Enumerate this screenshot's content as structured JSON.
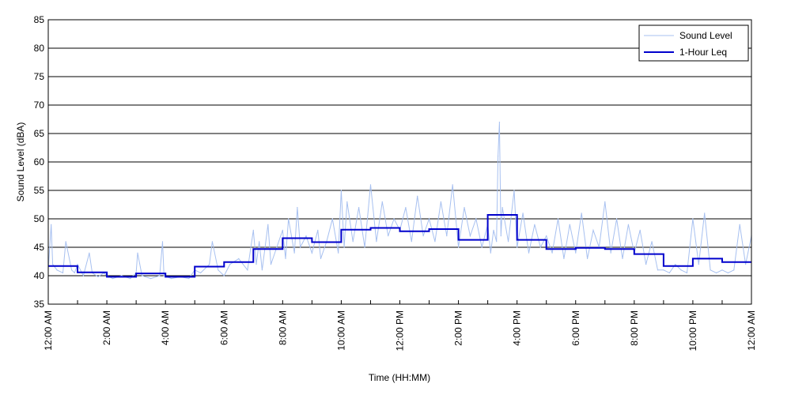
{
  "chart_data": {
    "type": "line",
    "title": "",
    "xlabel": "Time (HH:MM)",
    "ylabel": "Sound Level (dBA)",
    "ylim": [
      35,
      85
    ],
    "xlim": [
      0,
      24
    ],
    "x_unit": "hours",
    "grid": "horizontal",
    "legend_position": "top-right",
    "y_ticks": [
      35,
      40,
      45,
      50,
      55,
      60,
      65,
      70,
      75,
      80,
      85
    ],
    "x_ticks": [
      {
        "x": 0,
        "label": "12:00 AM"
      },
      {
        "x": 2,
        "label": "2:00 AM"
      },
      {
        "x": 4,
        "label": "4:00 AM"
      },
      {
        "x": 6,
        "label": "6:00 AM"
      },
      {
        "x": 8,
        "label": "8:00 AM"
      },
      {
        "x": 10,
        "label": "10:00 AM"
      },
      {
        "x": 12,
        "label": "12:00 PM"
      },
      {
        "x": 14,
        "label": "2:00 PM"
      },
      {
        "x": 16,
        "label": "4:00 PM"
      },
      {
        "x": 18,
        "label": "6:00 PM"
      },
      {
        "x": 20,
        "label": "8:00 PM"
      },
      {
        "x": 22,
        "label": "10:00 PM"
      },
      {
        "x": 24,
        "label": "12:00 AM"
      }
    ],
    "series": [
      {
        "name": "Sound Level",
        "color": "#a7c0f0",
        "style": "thin-noisy-line",
        "x": [
          0,
          0.1,
          0.15,
          0.3,
          0.5,
          0.6,
          0.8,
          0.9,
          1.0,
          1.2,
          1.4,
          1.5,
          1.7,
          1.9,
          2.0,
          2.2,
          2.5,
          2.8,
          3.0,
          3.05,
          3.2,
          3.5,
          3.8,
          3.9,
          3.95,
          4.2,
          4.5,
          4.8,
          5.0,
          5.2,
          5.5,
          5.6,
          5.8,
          6.0,
          6.2,
          6.5,
          6.8,
          7.0,
          7.1,
          7.2,
          7.3,
          7.5,
          7.6,
          7.8,
          8.0,
          8.1,
          8.2,
          8.4,
          8.5,
          8.6,
          8.8,
          9.0,
          9.2,
          9.3,
          9.5,
          9.7,
          9.9,
          10.0,
          10.1,
          10.2,
          10.4,
          10.6,
          10.8,
          11.0,
          11.2,
          11.4,
          11.6,
          11.8,
          12.0,
          12.2,
          12.4,
          12.6,
          12.8,
          13.0,
          13.2,
          13.4,
          13.6,
          13.8,
          14.0,
          14.2,
          14.4,
          14.6,
          14.8,
          15.0,
          15.1,
          15.2,
          15.3,
          15.35,
          15.4,
          15.45,
          15.5,
          15.7,
          15.9,
          16.0,
          16.2,
          16.4,
          16.6,
          16.8,
          17.0,
          17.2,
          17.4,
          17.6,
          17.8,
          18.0,
          18.2,
          18.4,
          18.6,
          18.8,
          19.0,
          19.2,
          19.4,
          19.6,
          19.8,
          20.0,
          20.2,
          20.4,
          20.6,
          20.8,
          21.0,
          21.2,
          21.4,
          21.6,
          21.8,
          22.0,
          22.2,
          22.4,
          22.6,
          22.8,
          23.0,
          23.2,
          23.4,
          23.6,
          23.8,
          24.0
        ],
        "values": [
          41,
          49,
          42,
          41,
          40.5,
          46,
          41,
          40.5,
          42,
          40,
          44,
          40.5,
          39.8,
          40.5,
          40,
          39.5,
          40,
          39.5,
          40.5,
          44,
          40,
          39.5,
          40,
          46,
          40,
          39.5,
          39.8,
          39.5,
          41,
          40.5,
          42,
          46,
          41,
          40,
          42,
          43,
          41,
          48,
          42,
          46,
          41,
          49,
          42,
          45,
          48,
          43,
          50,
          44,
          52,
          45,
          47,
          44,
          48,
          43,
          46,
          50,
          44,
          55,
          45,
          53,
          46,
          52,
          45,
          56,
          46,
          53,
          47,
          50,
          48,
          52,
          46,
          54,
          47,
          50,
          46,
          53,
          47,
          56,
          45,
          52,
          47,
          50,
          45,
          49,
          44,
          48,
          46,
          61,
          67,
          47,
          52,
          46,
          55,
          45,
          51,
          44,
          49,
          45,
          47,
          44,
          50,
          43,
          49,
          44,
          51,
          43,
          48,
          45,
          53,
          44,
          50,
          43,
          49,
          44,
          48,
          42,
          46,
          41,
          41,
          40.5,
          42,
          41,
          40.5,
          50,
          42,
          51,
          41,
          40.5,
          41,
          40.5,
          41,
          49,
          42,
          47
        ]
      },
      {
        "name": "1-Hour Leq",
        "color": "#0000cc",
        "style": "step",
        "hours": [
          0,
          1,
          2,
          3,
          4,
          5,
          6,
          7,
          8,
          9,
          10,
          11,
          12,
          13,
          14,
          15,
          16,
          17,
          18,
          19,
          20,
          21,
          22,
          23
        ],
        "values": [
          41.7,
          40.6,
          39.8,
          40.4,
          39.8,
          41.6,
          42.4,
          44.7,
          46.6,
          45.9,
          48.1,
          48.4,
          47.8,
          48.2,
          46.3,
          50.7,
          46.3,
          44.7,
          44.9,
          44.7,
          43.8,
          41.7,
          43.0,
          42.4
        ]
      }
    ]
  }
}
